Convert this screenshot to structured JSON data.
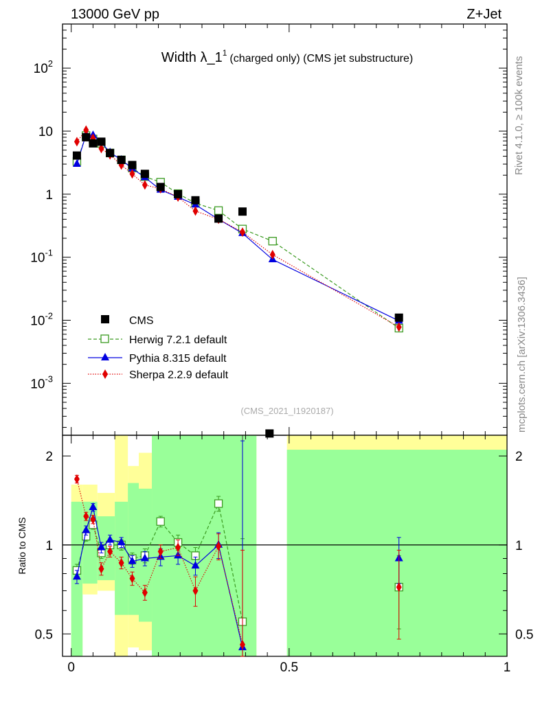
{
  "header": {
    "left": "13000 GeV pp",
    "right": "Z+Jet"
  },
  "side_labels": {
    "top": "Rivet 4.1.0, ≥ 100k events",
    "bottom": "mcplots.cern.ch [arXiv:1306.3436]"
  },
  "chart_data": [
    {
      "type": "scatter",
      "title": "Width λ_1",
      "title_superscript": "1",
      "subtitle": "(charged only) (CMS jet substructure)",
      "analysis_id": "(CMS_2021_I1920187)",
      "yscale": "log",
      "ylim": [
        0.00015,
        500
      ],
      "xlim": [
        -0.02,
        1.0
      ],
      "ytick_labels": [
        "10^-3",
        "10^-2",
        "10^-1",
        "1",
        "10",
        "10^2"
      ],
      "legend_position": "bottom-left",
      "legend": [
        "CMS",
        "Herwig 7.2.1 default",
        "Pythia 8.315 default",
        "Sherpa 2.2.9 default"
      ],
      "series": [
        {
          "name": "CMS",
          "color": "#000000",
          "marker": "square",
          "x": [
            0.013,
            0.034,
            0.05,
            0.069,
            0.089,
            0.115,
            0.14,
            0.169,
            0.205,
            0.245,
            0.285,
            0.338,
            0.393,
            0.455,
            0.752
          ],
          "y": [
            4.1,
            8.0,
            6.4,
            6.8,
            4.5,
            3.5,
            2.9,
            2.1,
            1.3,
            1.0,
            0.8,
            0.41,
            0.53,
            0.00016,
            0.011
          ]
        },
        {
          "name": "Herwig 7.2.1 default",
          "color": "#3a9a20",
          "marker": "open-square",
          "line": "dashed",
          "x": [
            0.013,
            0.034,
            0.05,
            0.069,
            0.089,
            0.115,
            0.14,
            0.169,
            0.205,
            0.245,
            0.285,
            0.338,
            0.393,
            0.462,
            0.752
          ],
          "y": [
            3.3,
            8.5,
            7.5,
            6.4,
            4.5,
            3.5,
            2.6,
            1.9,
            1.55,
            1.02,
            0.72,
            0.55,
            0.28,
            0.18,
            0.0075
          ]
        },
        {
          "name": "Pythia 8.315 default",
          "color": "#0000e0",
          "marker": "triangle",
          "line": "solid",
          "x": [
            0.013,
            0.034,
            0.05,
            0.069,
            0.089,
            0.115,
            0.14,
            0.169,
            0.205,
            0.245,
            0.285,
            0.338,
            0.393,
            0.462,
            0.752
          ],
          "y": [
            3.0,
            8.8,
            8.6,
            6.6,
            4.6,
            3.5,
            2.55,
            1.85,
            1.17,
            0.9,
            0.68,
            0.4,
            0.24,
            0.092,
            0.0098
          ]
        },
        {
          "name": "Sherpa 2.2.9 default",
          "color": "#e00000",
          "marker": "diamond",
          "line": "dotted",
          "x": [
            0.013,
            0.034,
            0.05,
            0.069,
            0.089,
            0.115,
            0.14,
            0.169,
            0.205,
            0.245,
            0.285,
            0.338,
            0.393,
            0.462,
            0.752
          ],
          "y": [
            6.8,
            10.4,
            7.7,
            5.3,
            4.2,
            2.9,
            2.1,
            1.4,
            1.22,
            0.9,
            0.54,
            0.4,
            0.25,
            0.11,
            0.0078
          ]
        }
      ]
    },
    {
      "type": "scatter",
      "ylabel": "Ratio to CMS",
      "yscale": "log",
      "ylim": [
        0.42,
        2.35
      ],
      "xlim": [
        -0.02,
        1.0
      ],
      "ytick_labels": [
        "0.5",
        "1",
        "2"
      ],
      "xtick_labels": [
        "0",
        "0.5",
        "1"
      ],
      "reference_line": 1,
      "bands": [
        {
          "x0": 0.0,
          "x1": 0.026,
          "y_lo": 0.42,
          "y_hi": 1.4,
          "y_lo_outer": 0.42,
          "y_hi_outer": 1.6
        },
        {
          "x0": 0.026,
          "x1": 0.06,
          "y_lo": 0.74,
          "y_hi": 1.4,
          "y_lo_outer": 0.68,
          "y_hi_outer": 1.6
        },
        {
          "x0": 0.06,
          "x1": 0.1,
          "y_lo": 0.76,
          "y_hi": 1.25,
          "y_lo_outer": 0.7,
          "y_hi_outer": 1.5
        },
        {
          "x0": 0.1,
          "x1": 0.13,
          "y_lo": 0.58,
          "y_hi": 1.4,
          "y_lo_outer": 0.42,
          "y_hi_outer": 2.35
        },
        {
          "x0": 0.13,
          "x1": 0.155,
          "y_lo": 0.58,
          "y_hi": 1.62,
          "y_lo_outer": 0.45,
          "y_hi_outer": 1.85
        },
        {
          "x0": 0.155,
          "x1": 0.185,
          "y_lo": 0.55,
          "y_hi": 1.55,
          "y_lo_outer": 0.44,
          "y_hi_outer": 2.05
        },
        {
          "x0": 0.185,
          "x1": 0.425,
          "y_lo": 0.42,
          "y_hi": 2.35,
          "y_lo_outer": 0.42,
          "y_hi_outer": 2.35
        },
        {
          "x0": 0.495,
          "x1": 1.0,
          "y_lo": 0.42,
          "y_hi": 2.1,
          "y_lo_outer": 0.42,
          "y_hi_outer": 2.35
        }
      ],
      "series": [
        {
          "name": "Herwig 7.2.1 default",
          "color": "#3a9a20",
          "x": [
            0.013,
            0.034,
            0.05,
            0.069,
            0.089,
            0.115,
            0.14,
            0.169,
            0.205,
            0.245,
            0.285,
            0.338,
            0.393,
            0.752
          ],
          "y": [
            0.82,
            1.07,
            1.17,
            0.94,
            1.0,
            1.0,
            0.9,
            0.92,
            1.2,
            1.02,
            0.92,
            1.38,
            0.55,
            0.72
          ],
          "err": [
            0.04,
            0.04,
            0.04,
            0.04,
            0.04,
            0.04,
            0.04,
            0.05,
            0.05,
            0.06,
            0.06,
            0.08,
            0.5,
            0.2
          ]
        },
        {
          "name": "Pythia 8.315 default",
          "color": "#0000e0",
          "x": [
            0.013,
            0.034,
            0.05,
            0.069,
            0.089,
            0.115,
            0.14,
            0.169,
            0.205,
            0.245,
            0.285,
            0.338,
            0.393,
            0.752
          ],
          "y": [
            0.78,
            1.12,
            1.34,
            0.98,
            1.04,
            1.02,
            0.88,
            0.9,
            0.91,
            0.92,
            0.85,
            1.0,
            0.45,
            0.9
          ],
          "err": [
            0.04,
            0.04,
            0.04,
            0.04,
            0.04,
            0.04,
            0.04,
            0.05,
            0.06,
            0.06,
            0.06,
            0.1,
            1.8,
            0.16
          ]
        },
        {
          "name": "Sherpa 2.2.9 default",
          "color": "#e00000",
          "x": [
            0.013,
            0.034,
            0.05,
            0.069,
            0.089,
            0.115,
            0.14,
            0.169,
            0.205,
            0.245,
            0.285,
            0.338,
            0.393,
            0.752
          ],
          "y": [
            1.67,
            1.25,
            1.22,
            0.83,
            0.95,
            0.87,
            0.77,
            0.69,
            0.95,
            0.98,
            0.7,
            0.99,
            0.46,
            0.72
          ],
          "err": [
            0.05,
            0.04,
            0.04,
            0.04,
            0.04,
            0.04,
            0.04,
            0.04,
            0.05,
            0.06,
            0.08,
            0.1,
            0.5,
            0.24
          ]
        }
      ]
    }
  ]
}
